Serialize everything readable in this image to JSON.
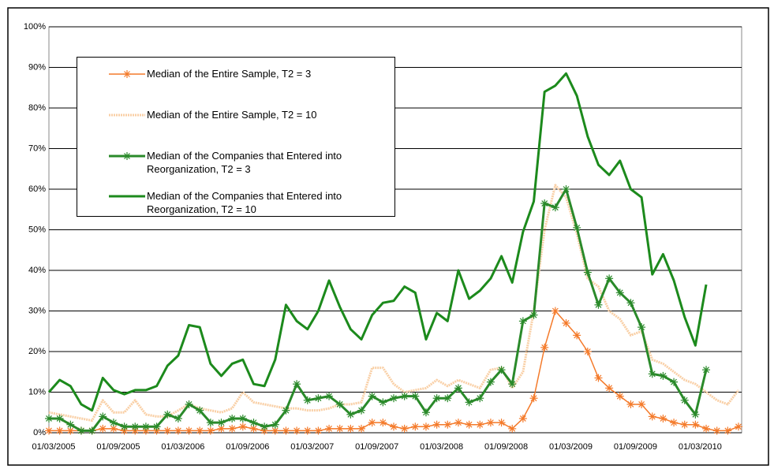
{
  "chart_data": {
    "type": "line",
    "categories": [
      "01/03/2005",
      null,
      null,
      null,
      null,
      null,
      "01/09/2005",
      null,
      null,
      null,
      null,
      null,
      "01/03/2006",
      null,
      null,
      null,
      null,
      null,
      "01/09/2006",
      null,
      null,
      null,
      null,
      null,
      "01/03/2007",
      null,
      null,
      null,
      null,
      null,
      "01/09/2007",
      null,
      null,
      null,
      null,
      null,
      "01/03/2008",
      null,
      null,
      null,
      null,
      null,
      "01/09/2008",
      null,
      null,
      null,
      null,
      null,
      "01/03/2009",
      null,
      null,
      null,
      null,
      null,
      "01/09/2009",
      null,
      null,
      null,
      null,
      null,
      "01/03/2010",
      null,
      null,
      null,
      null
    ],
    "series": [
      {
        "name": "Median of the Entire Sample, T2 = 3",
        "color": "#f47a2a",
        "marker": "asterisk",
        "width": 1.5,
        "dash": "none",
        "values": [
          0.5,
          0.5,
          0.5,
          0.5,
          0.5,
          1,
          1,
          0.5,
          0.5,
          0.5,
          0.5,
          0.5,
          0.5,
          0.5,
          0.5,
          0.5,
          1,
          1,
          1.5,
          1,
          0.5,
          0.5,
          0.5,
          0.5,
          0.5,
          0.5,
          1,
          1,
          1,
          1,
          2.5,
          2.5,
          1.5,
          1,
          1.5,
          1.5,
          2,
          2,
          2.5,
          2,
          2,
          2.5,
          2.5,
          1,
          3.5,
          8.5,
          21,
          30,
          27,
          24,
          20,
          13.5,
          11,
          9,
          7,
          7,
          4,
          3.5,
          2.5,
          2,
          2,
          1,
          0.5,
          0.5,
          1.5
        ]
      },
      {
        "name": "Median of the Entire Sample, T2 = 10",
        "color": "#f9cfa5",
        "marker": "none",
        "width": 3,
        "dash": "2 1",
        "values": [
          5,
          4.5,
          4,
          3.5,
          3,
          8,
          5,
          5,
          8,
          4.5,
          4,
          4,
          5.5,
          7,
          6,
          5.5,
          5,
          6,
          10,
          7.5,
          7,
          6.5,
          6,
          6,
          5.5,
          5.5,
          6,
          7,
          7,
          7.5,
          16,
          16,
          12,
          10,
          10.5,
          11,
          13,
          11.5,
          13,
          12,
          11,
          15.5,
          16,
          11,
          15,
          30,
          50,
          61,
          58,
          49,
          38,
          36,
          30,
          28,
          24,
          25,
          18,
          17,
          15,
          13,
          12,
          10,
          8,
          7,
          10.5
        ]
      },
      {
        "name": "Median of the Companies that Entered into Reorganization, T2 = 3",
        "color": "#2a8a2a",
        "marker": "asterisk",
        "width": 3,
        "dash": "none",
        "values": [
          3.5,
          3.5,
          2,
          0.5,
          0.5,
          4,
          2.5,
          1.5,
          1.5,
          1.5,
          1.5,
          4.5,
          3.5,
          7,
          5.5,
          2.5,
          2.5,
          3.5,
          3.5,
          2.5,
          1.5,
          2,
          5.5,
          12,
          8,
          8.5,
          9,
          7,
          4.5,
          5.5,
          9,
          7.5,
          8.5,
          9,
          9,
          5,
          8.5,
          8.5,
          11,
          7.5,
          8.5,
          12.5,
          15.5,
          12,
          27.5,
          29,
          56.5,
          55.5,
          60,
          50.5,
          39.5,
          31.5,
          38,
          34.5,
          32,
          26,
          14.5,
          14,
          12.5,
          8,
          4.5,
          15.5,
          null,
          null,
          null
        ]
      },
      {
        "name": "Median of the Companies that Entered into Reorganization, T2 = 10",
        "color": "#1c8a1c",
        "marker": "none",
        "width": 3,
        "dash": "none",
        "values": [
          10,
          13,
          11.5,
          7,
          5.5,
          13.5,
          10.5,
          9.5,
          10.5,
          10.5,
          11.5,
          16.5,
          19,
          26.5,
          26,
          17,
          14,
          17,
          18,
          12,
          11.5,
          18,
          31.5,
          27.5,
          25.5,
          30,
          37.5,
          31,
          25.5,
          23,
          29,
          32,
          32.5,
          36,
          34.5,
          23,
          29.5,
          27.5,
          40,
          33,
          35,
          38,
          43.5,
          37,
          49.5,
          57,
          84,
          85.5,
          88.5,
          83,
          73,
          66,
          63.5,
          67,
          60,
          58,
          39,
          44,
          37.5,
          28.5,
          21.5,
          36.5,
          null,
          null,
          null
        ]
      }
    ],
    "ylim": [
      0,
      100
    ],
    "yticks": [
      {
        "value": 0,
        "label": "0%"
      },
      {
        "value": 10,
        "label": "10%"
      },
      {
        "value": 20,
        "label": "20%"
      },
      {
        "value": 30,
        "label": "30%"
      },
      {
        "value": 40,
        "label": "40%"
      },
      {
        "value": 50,
        "label": "50%"
      },
      {
        "value": 60,
        "label": "60%"
      },
      {
        "value": 70,
        "label": "70%"
      },
      {
        "value": 80,
        "label": "80%"
      },
      {
        "value": 90,
        "label": "90%"
      },
      {
        "value": 100,
        "label": "100%"
      }
    ],
    "grid": true
  }
}
